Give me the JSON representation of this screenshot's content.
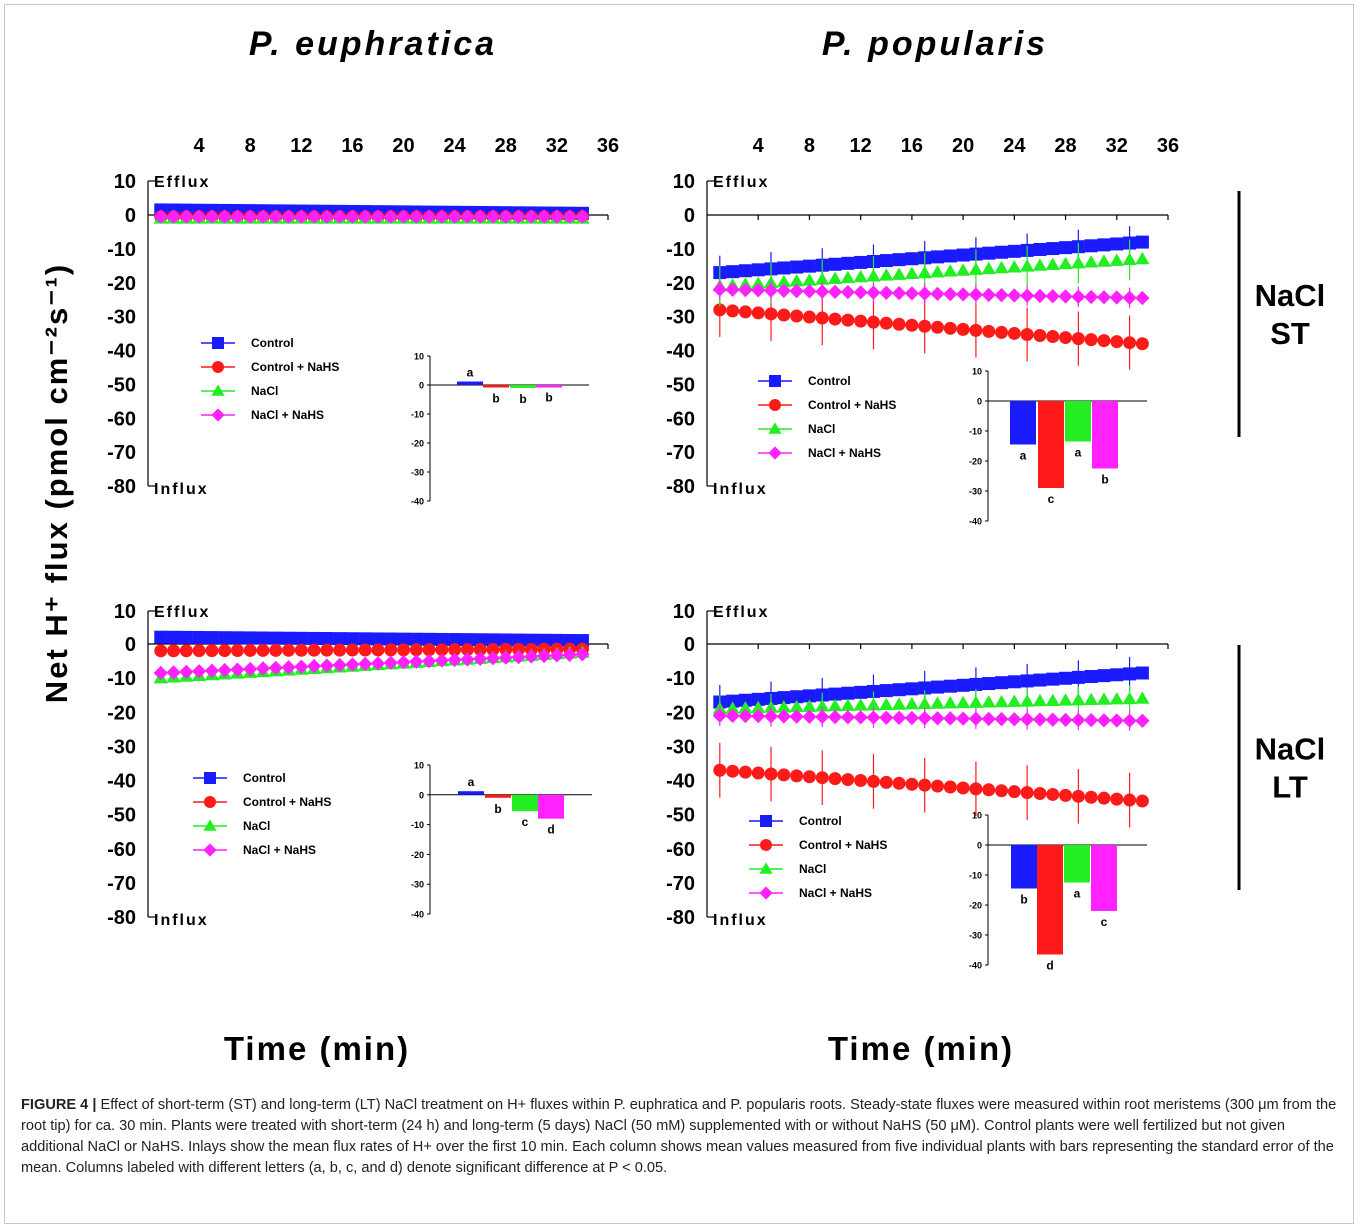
{
  "species": [
    "P. euphratica",
    "P. popularis"
  ],
  "row_labels": [
    [
      "NaCl",
      "ST"
    ],
    [
      "NaCl",
      "LT"
    ]
  ],
  "y_axis_label": "Net H⁺ flux (pmol cm⁻²s⁻¹)",
  "x_axis_label": "Time (min)",
  "efflux_label": "Efflux",
  "influx_label": "Influx",
  "caption": {
    "lead": "FIGURE 4 |",
    "text": "Effect of short-term (ST) and long-term (LT) NaCl treatment on H+ fluxes within P. euphratica and P. popularis roots. Steady-state fluxes were measured within root meristems (300 μm from the root tip) for ca. 30 min. Plants were treated with short-term (24 h) and long-term (5 days) NaCl (50 mM) supplemented with or without NaHS (50 μM). Control plants were well fertilized but not given additional NaCl or NaHS. Inlays show the mean flux rates of H+ over the first 10 min. Each column shows mean values measured from five individual plants with bars representing the standard error of the mean. Columns labeled with different letters (a, b, c, and d) denote significant difference at P < 0.05."
  },
  "colors": {
    "Control": "#1a1aff",
    "Control + NaHS": "#ff1a1a",
    "NaCl": "#22ee22",
    "NaCl + NaHS": "#ff22ff"
  },
  "chart_data": [
    {
      "type": "scatter",
      "panel": "P. euphratica NaCl ST",
      "x_ticks": [
        4,
        8,
        12,
        16,
        20,
        24,
        28,
        32,
        36
      ],
      "ylim": [
        -80,
        10
      ],
      "xlim": [
        0,
        36
      ],
      "y_ticks": [
        10,
        0,
        -10,
        -20,
        -30,
        -40,
        -50,
        -60,
        -70,
        -80
      ],
      "series": [
        {
          "name": "Control",
          "marker": "square",
          "y_start": 1.5,
          "y_end": 0.5,
          "err": 0
        },
        {
          "name": "Control + NaHS",
          "marker": "circle",
          "y_start": -0.5,
          "y_end": -0.5,
          "err": 0
        },
        {
          "name": "NaCl",
          "marker": "triangle",
          "y_start": -1,
          "y_end": -1,
          "err": 0
        },
        {
          "name": "NaCl + NaHS",
          "marker": "diamond",
          "y_start": -0.5,
          "y_end": -0.5,
          "err": 0
        }
      ],
      "inset": {
        "ylim": [
          -40,
          10
        ],
        "y_ticks": [
          10,
          0,
          -10,
          -20,
          -30,
          -40
        ],
        "values": [
          1.2,
          -0.8,
          -1,
          -0.5
        ],
        "letters": [
          "a",
          "b",
          "b",
          "b"
        ]
      }
    },
    {
      "type": "scatter",
      "panel": "P. popularis NaCl ST",
      "x_ticks": [
        4,
        8,
        12,
        16,
        20,
        24,
        28,
        32,
        36
      ],
      "ylim": [
        -80,
        10
      ],
      "xlim": [
        0,
        36
      ],
      "y_ticks": [
        10,
        0,
        -10,
        -20,
        -30,
        -40,
        -50,
        -60,
        -70,
        -80
      ],
      "series": [
        {
          "name": "Control",
          "marker": "square",
          "y_start": -17,
          "y_end": -8,
          "err": 5
        },
        {
          "name": "Control + NaHS",
          "marker": "circle",
          "y_start": -28,
          "y_end": -38,
          "err": 8
        },
        {
          "name": "NaCl",
          "marker": "triangle",
          "y_start": -21,
          "y_end": -13,
          "err": 6
        },
        {
          "name": "NaCl + NaHS",
          "marker": "diamond",
          "y_start": -22,
          "y_end": -24.5,
          "err": 3
        }
      ],
      "inset": {
        "ylim": [
          -40,
          10
        ],
        "y_ticks": [
          10,
          0,
          -10,
          -20,
          -30,
          -40
        ],
        "values": [
          -14.5,
          -29,
          -13.5,
          -22.5
        ],
        "letters": [
          "a",
          "c",
          "a",
          "b"
        ]
      }
    },
    {
      "type": "scatter",
      "panel": "P. euphratica NaCl LT",
      "x_ticks": [
        4,
        8,
        12,
        16,
        20,
        24,
        28,
        32,
        36
      ],
      "ylim": [
        -80,
        10
      ],
      "xlim": [
        0,
        36
      ],
      "y_ticks": [
        10,
        0,
        -10,
        -20,
        -30,
        -40,
        -50,
        -60,
        -70,
        -80
      ],
      "series": [
        {
          "name": "Control",
          "marker": "square",
          "y_start": 2,
          "y_end": 1,
          "err": 0
        },
        {
          "name": "Control + NaHS",
          "marker": "circle",
          "y_start": -2,
          "y_end": -1.5,
          "err": 0
        },
        {
          "name": "NaCl",
          "marker": "triangle",
          "y_start": -10,
          "y_end": -2.5,
          "err": 1
        },
        {
          "name": "NaCl + NaHS",
          "marker": "diamond",
          "y_start": -8.5,
          "y_end": -3,
          "err": 2
        }
      ],
      "inset": {
        "ylim": [
          -40,
          10
        ],
        "y_ticks": [
          10,
          0,
          -10,
          -20,
          -30,
          -40
        ],
        "values": [
          1.2,
          -1,
          -5.5,
          -8
        ],
        "letters": [
          "a",
          "b",
          "c",
          "d"
        ]
      }
    },
    {
      "type": "scatter",
      "panel": "P. popularis NaCl LT",
      "x_ticks": [
        4,
        8,
        12,
        16,
        20,
        24,
        28,
        32,
        36
      ],
      "ylim": [
        -80,
        10
      ],
      "xlim": [
        0,
        36
      ],
      "y_ticks": [
        10,
        0,
        -10,
        -20,
        -30,
        -40,
        -50,
        -60,
        -70,
        -80
      ],
      "series": [
        {
          "name": "Control",
          "marker": "square",
          "y_start": -17,
          "y_end": -8.5,
          "err": 5
        },
        {
          "name": "Control + NaHS",
          "marker": "circle",
          "y_start": -37,
          "y_end": -46,
          "err": 8
        },
        {
          "name": "NaCl",
          "marker": "triangle",
          "y_start": -19,
          "y_end": -16,
          "err": 4
        },
        {
          "name": "NaCl + NaHS",
          "marker": "diamond",
          "y_start": -21,
          "y_end": -22.5,
          "err": 3
        }
      ],
      "inset": {
        "ylim": [
          -40,
          10
        ],
        "y_ticks": [
          10,
          0,
          -10,
          -20,
          -30,
          -40
        ],
        "values": [
          -14.5,
          -36.5,
          -12.5,
          -22
        ],
        "letters": [
          "b",
          "d",
          "a",
          "c"
        ]
      }
    }
  ]
}
